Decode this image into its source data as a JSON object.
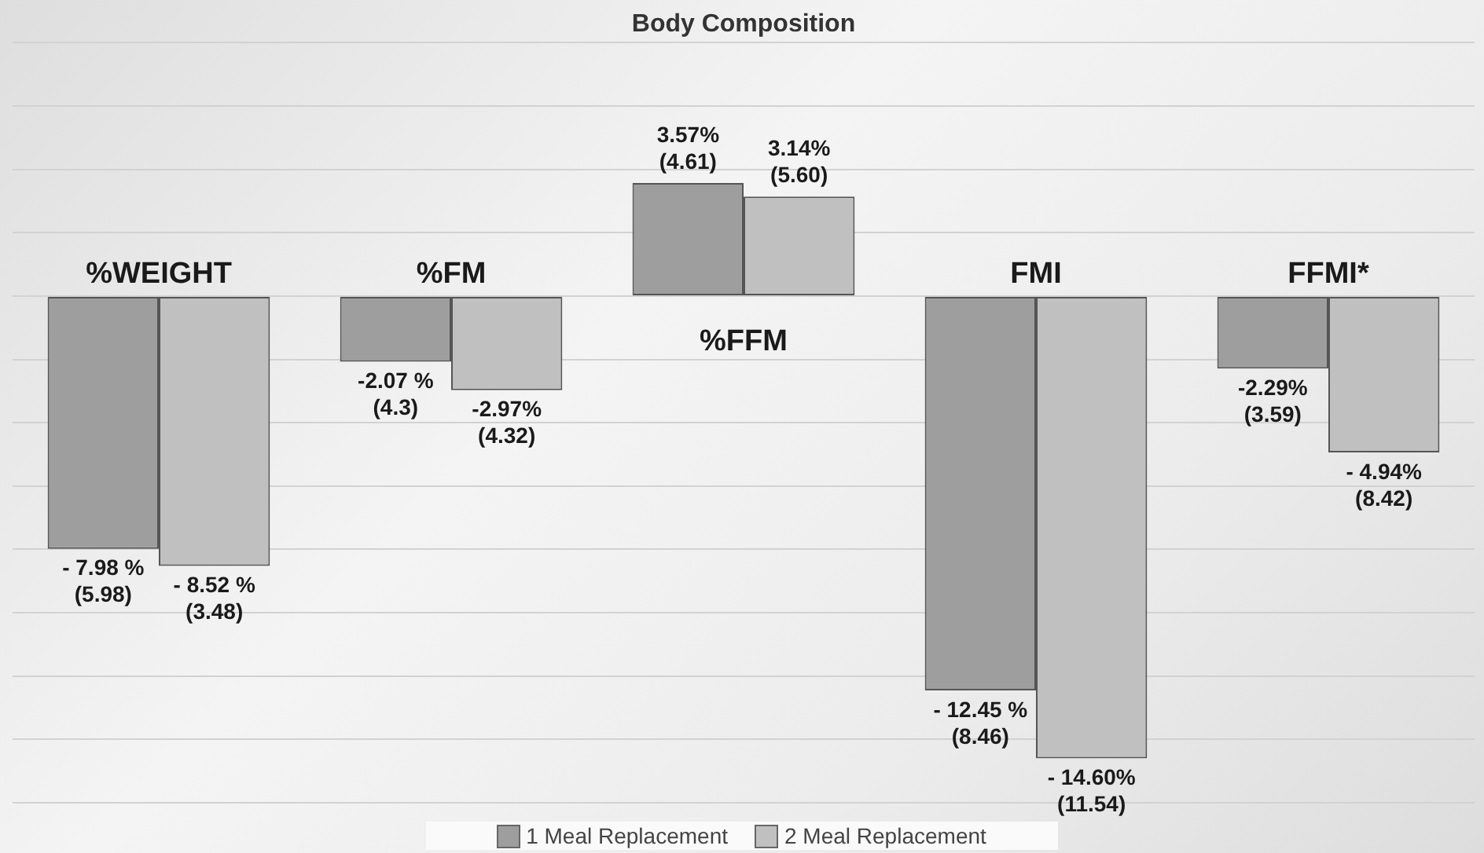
{
  "chart_data": {
    "type": "bar",
    "title": "Body Composition",
    "categories": [
      "%WEIGHT",
      "%FM",
      "%FFM",
      "FMI",
      "FFMI*"
    ],
    "series": [
      {
        "name": "1 Meal Replacement",
        "color": "#9e9e9e",
        "values": [
          -7.98,
          -2.07,
          3.57,
          -12.45,
          -2.29
        ],
        "value_labels": [
          "- 7.98 %\n(5.98)",
          "-2.07 %\n(4.3)",
          "3.57%\n(4.61)",
          "- 12.45 %\n(8.46)",
          "-2.29%\n(3.59)"
        ]
      },
      {
        "name": "2 Meal Replacement",
        "color": "#c0c0c0",
        "values": [
          -8.52,
          -2.97,
          3.14,
          -14.6,
          -4.94
        ],
        "value_labels": [
          "- 8.52 %\n(3.48)",
          "-2.97%\n(4.32)",
          "3.14%\n(5.60)",
          "- 14.60%\n(11.54)",
          "- 4.94%\n(8.42)"
        ]
      }
    ],
    "ylim": [
      -16,
      8
    ],
    "yticks": [
      {
        "value": -16,
        "label": null
      },
      {
        "value": -14,
        "label": null
      },
      {
        "value": -12,
        "label": null
      },
      {
        "value": -10,
        "label": null
      },
      {
        "value": -8,
        "label": null
      },
      {
        "value": -6,
        "label": null
      },
      {
        "value": -4,
        "label": null
      },
      {
        "value": -2,
        "label": null
      },
      {
        "value": 0,
        "label": null
      },
      {
        "value": 2,
        "label": null
      },
      {
        "value": 4,
        "label": null
      },
      {
        "value": 6,
        "label": null
      },
      {
        "value": 8,
        "label": null
      }
    ],
    "grid": "y",
    "legend": "bottom",
    "tick_labels": "x"
  }
}
